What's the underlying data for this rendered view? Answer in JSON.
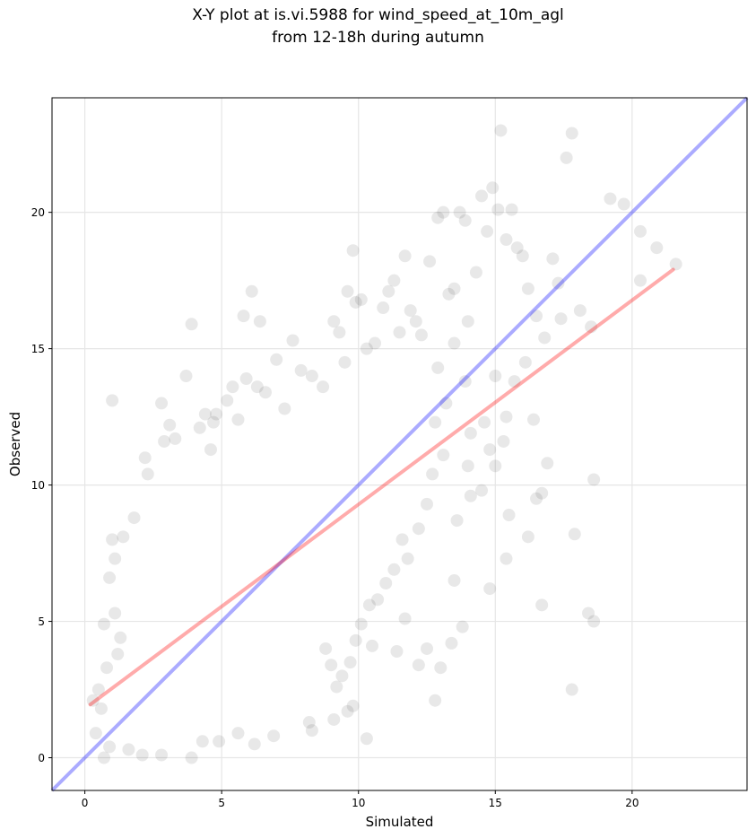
{
  "chart_data": {
    "type": "scatter",
    "title": [
      "X-Y plot at is.vi.5988 for wind_speed_at_10m_agl",
      "from 12-18h during autumn"
    ],
    "xlabel": "Simulated",
    "ylabel": "Observed",
    "xlim": [
      -1.2,
      24.2
    ],
    "ylim": [
      -1.2,
      24.2
    ],
    "xticks": [
      0,
      5,
      10,
      15,
      20
    ],
    "yticks": [
      0,
      5,
      10,
      15,
      20
    ],
    "grid": true,
    "legend": "none",
    "point_color": "#000000",
    "point_opacity": 0.09,
    "series": [
      {
        "points": [
          [
            0.9,
            6.6
          ],
          [
            1.0,
            13.1
          ],
          [
            1.1,
            7.3
          ],
          [
            1.0,
            8.0
          ],
          [
            1.4,
            8.1
          ],
          [
            1.8,
            8.8
          ],
          [
            2.2,
            11.0
          ],
          [
            2.3,
            10.4
          ],
          [
            2.8,
            13.0
          ],
          [
            2.9,
            11.6
          ],
          [
            3.1,
            12.2
          ],
          [
            3.3,
            11.7
          ],
          [
            3.7,
            14.0
          ],
          [
            3.9,
            15.9
          ],
          [
            4.2,
            12.1
          ],
          [
            4.4,
            12.6
          ],
          [
            4.6,
            11.3
          ],
          [
            4.7,
            12.3
          ],
          [
            4.8,
            12.6
          ],
          [
            5.2,
            13.1
          ],
          [
            5.4,
            13.6
          ],
          [
            5.6,
            12.4
          ],
          [
            5.8,
            16.2
          ],
          [
            5.9,
            13.9
          ],
          [
            6.1,
            17.1
          ],
          [
            6.3,
            13.6
          ],
          [
            6.4,
            16.0
          ],
          [
            6.6,
            13.4
          ],
          [
            7.0,
            14.6
          ],
          [
            7.3,
            12.8
          ],
          [
            7.6,
            15.3
          ],
          [
            7.9,
            14.2
          ],
          [
            8.3,
            14.0
          ],
          [
            8.7,
            13.6
          ],
          [
            9.1,
            16.0
          ],
          [
            9.3,
            15.6
          ],
          [
            9.6,
            17.1
          ],
          [
            9.9,
            16.7
          ],
          [
            9.5,
            14.5
          ],
          [
            9.8,
            18.6
          ],
          [
            10.1,
            16.8
          ],
          [
            10.3,
            15.0
          ],
          [
            10.6,
            15.2
          ],
          [
            10.9,
            16.5
          ],
          [
            11.1,
            17.1
          ],
          [
            11.3,
            17.5
          ],
          [
            11.5,
            15.6
          ],
          [
            11.7,
            18.4
          ],
          [
            11.9,
            16.4
          ],
          [
            12.1,
            16.0
          ],
          [
            12.3,
            15.5
          ],
          [
            12.6,
            18.2
          ],
          [
            12.9,
            19.8
          ],
          [
            13.1,
            20.0
          ],
          [
            13.3,
            17.0
          ],
          [
            13.5,
            17.2
          ],
          [
            13.7,
            20.0
          ],
          [
            13.9,
            19.7
          ],
          [
            14.0,
            16.0
          ],
          [
            14.3,
            17.8
          ],
          [
            14.5,
            20.6
          ],
          [
            14.7,
            19.3
          ],
          [
            14.9,
            20.9
          ],
          [
            15.1,
            20.1
          ],
          [
            15.2,
            23.0
          ],
          [
            15.4,
            19.0
          ],
          [
            15.6,
            20.1
          ],
          [
            15.8,
            18.7
          ],
          [
            16.0,
            18.4
          ],
          [
            16.2,
            17.2
          ],
          [
            16.5,
            16.2
          ],
          [
            16.8,
            15.4
          ],
          [
            17.1,
            18.3
          ],
          [
            17.3,
            17.4
          ],
          [
            17.6,
            22.0
          ],
          [
            17.8,
            22.9
          ],
          [
            18.1,
            16.4
          ],
          [
            18.5,
            15.8
          ],
          [
            19.2,
            20.5
          ],
          [
            19.7,
            20.3
          ],
          [
            20.3,
            19.3
          ],
          [
            20.9,
            18.7
          ],
          [
            21.6,
            18.1
          ],
          [
            20.3,
            17.5
          ],
          [
            17.4,
            16.1
          ],
          [
            15.7,
            13.8
          ],
          [
            16.1,
            14.5
          ],
          [
            15.4,
            12.5
          ],
          [
            16.4,
            12.4
          ],
          [
            15.0,
            14.0
          ],
          [
            15.5,
            8.9
          ],
          [
            15.4,
            7.3
          ],
          [
            16.2,
            8.1
          ],
          [
            16.5,
            9.5
          ],
          [
            16.7,
            9.7
          ],
          [
            16.9,
            10.8
          ],
          [
            17.9,
            8.2
          ],
          [
            18.4,
            5.3
          ],
          [
            18.6,
            5.0
          ],
          [
            18.6,
            10.2
          ],
          [
            16.7,
            5.6
          ],
          [
            17.8,
            2.5
          ],
          [
            14.8,
            6.2
          ],
          [
            14.0,
            10.7
          ],
          [
            13.5,
            6.5
          ],
          [
            13.8,
            4.8
          ],
          [
            13.4,
            4.2
          ],
          [
            13.0,
            3.3
          ],
          [
            12.8,
            2.1
          ],
          [
            12.2,
            3.4
          ],
          [
            12.5,
            4.0
          ],
          [
            11.7,
            5.1
          ],
          [
            11.4,
            3.9
          ],
          [
            10.5,
            4.1
          ],
          [
            10.3,
            0.7
          ],
          [
            9.8,
            1.9
          ],
          [
            9.6,
            1.7
          ],
          [
            9.1,
            1.4
          ],
          [
            8.2,
            1.3
          ],
          [
            8.3,
            1.0
          ],
          [
            6.9,
            0.8
          ],
          [
            6.2,
            0.5
          ],
          [
            5.6,
            0.9
          ],
          [
            4.9,
            0.6
          ],
          [
            4.3,
            0.6
          ],
          [
            3.9,
            0.0
          ],
          [
            2.8,
            0.1
          ],
          [
            2.1,
            0.1
          ],
          [
            1.6,
            0.3
          ],
          [
            0.9,
            0.4
          ],
          [
            0.7,
            0.0
          ],
          [
            0.4,
            0.9
          ],
          [
            0.3,
            2.1
          ],
          [
            0.6,
            1.8
          ],
          [
            0.5,
            2.5
          ],
          [
            0.8,
            3.3
          ],
          [
            0.7,
            4.9
          ],
          [
            1.1,
            5.3
          ],
          [
            1.3,
            4.4
          ],
          [
            1.2,
            3.8
          ],
          [
            13.6,
            8.7
          ],
          [
            14.1,
            9.6
          ],
          [
            14.5,
            9.8
          ],
          [
            14.8,
            11.3
          ],
          [
            15.0,
            10.7
          ],
          [
            15.3,
            11.6
          ],
          [
            14.6,
            12.3
          ],
          [
            14.1,
            11.9
          ],
          [
            13.9,
            13.8
          ],
          [
            13.2,
            13.0
          ],
          [
            12.8,
            12.3
          ],
          [
            12.9,
            14.3
          ],
          [
            13.5,
            15.2
          ],
          [
            13.1,
            11.1
          ],
          [
            12.7,
            10.4
          ],
          [
            12.5,
            9.3
          ],
          [
            12.2,
            8.4
          ],
          [
            11.8,
            7.3
          ],
          [
            11.6,
            8.0
          ],
          [
            11.3,
            6.9
          ],
          [
            11.0,
            6.4
          ],
          [
            10.7,
            5.8
          ],
          [
            10.4,
            5.6
          ],
          [
            10.1,
            4.9
          ],
          [
            9.9,
            4.3
          ],
          [
            9.7,
            3.5
          ],
          [
            9.4,
            3.0
          ],
          [
            9.2,
            2.6
          ],
          [
            9.0,
            3.4
          ],
          [
            8.8,
            4.0
          ]
        ]
      }
    ],
    "identity_line": {
      "label": "1:1",
      "x": [
        -1.2,
        24.2
      ],
      "y": [
        -1.2,
        24.2
      ],
      "color": "#0000ff",
      "opacity": 0.33
    },
    "fit_line": {
      "x": [
        0.2,
        21.5
      ],
      "y": [
        1.95,
        17.9
      ],
      "color": "#ff0000",
      "opacity": 0.33
    }
  }
}
